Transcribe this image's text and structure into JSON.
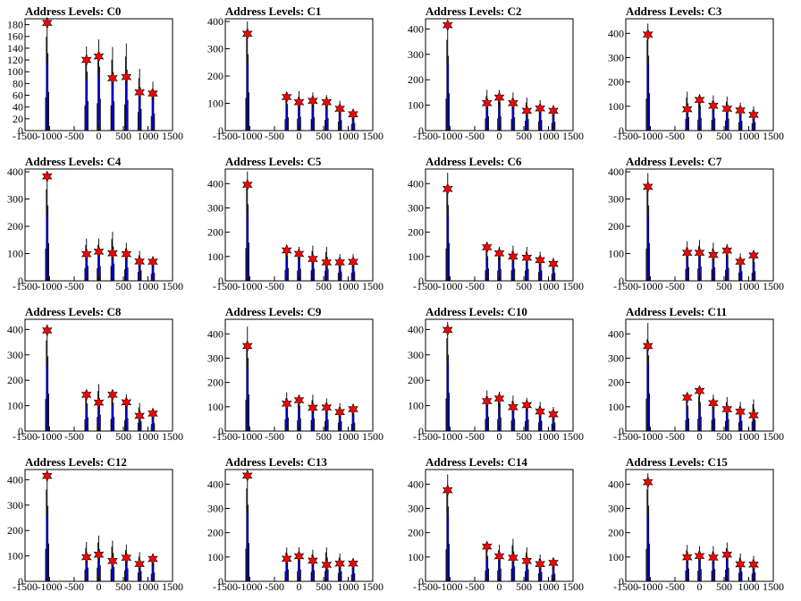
{
  "chart_data": [
    {
      "type": "histogram",
      "title": "Address Levels: C0",
      "xlim": [
        -1500,
        1500
      ],
      "ylim": [
        0,
        190
      ],
      "y_ticks": [
        0,
        20,
        40,
        60,
        80,
        100,
        120,
        140,
        160,
        180
      ],
      "x_ticks": [
        -1500,
        -1000,
        -500,
        0,
        500,
        1000,
        1500
      ],
      "peaks": [
        {
          "x": -1050,
          "y": 183
        },
        {
          "x": -250,
          "y": 120
        },
        {
          "x": 0,
          "y": 126
        },
        {
          "x": 280,
          "y": 89
        },
        {
          "x": 560,
          "y": 91
        },
        {
          "x": 830,
          "y": 65
        },
        {
          "x": 1100,
          "y": 63
        }
      ],
      "hist_max": [
        188,
        143,
        155,
        142,
        148,
        105,
        83
      ]
    },
    {
      "type": "histogram",
      "title": "Address Levels: C1",
      "xlim": [
        -1500,
        1500
      ],
      "ylim": [
        0,
        410
      ],
      "y_ticks": [
        0,
        100,
        200,
        300,
        400
      ],
      "x_ticks": [
        -1500,
        -1000,
        -500,
        0,
        500,
        1000,
        1500
      ],
      "peaks": [
        {
          "x": -1050,
          "y": 355
        },
        {
          "x": -250,
          "y": 123
        },
        {
          "x": 0,
          "y": 104
        },
        {
          "x": 280,
          "y": 109
        },
        {
          "x": 560,
          "y": 104
        },
        {
          "x": 830,
          "y": 80
        },
        {
          "x": 1100,
          "y": 60
        }
      ],
      "hist_max": [
        400,
        140,
        145,
        140,
        130,
        110,
        80
      ]
    },
    {
      "type": "histogram",
      "title": "Address Levels: C2",
      "xlim": [
        -1500,
        1500
      ],
      "ylim": [
        0,
        440
      ],
      "y_ticks": [
        0,
        100,
        200,
        300,
        400
      ],
      "x_ticks": [
        -1500,
        -1000,
        -500,
        0,
        500,
        1000,
        1500
      ],
      "peaks": [
        {
          "x": -1050,
          "y": 415
        },
        {
          "x": -250,
          "y": 108
        },
        {
          "x": 0,
          "y": 130
        },
        {
          "x": 280,
          "y": 108
        },
        {
          "x": 560,
          "y": 78
        },
        {
          "x": 830,
          "y": 87
        },
        {
          "x": 1100,
          "y": 78
        }
      ],
      "hist_max": [
        420,
        160,
        160,
        150,
        130,
        120,
        100
      ]
    },
    {
      "type": "histogram",
      "title": "Address Levels: C3",
      "xlim": [
        -1500,
        1500
      ],
      "ylim": [
        0,
        460
      ],
      "y_ticks": [
        0,
        100,
        200,
        300,
        400
      ],
      "x_ticks": [
        -1500,
        -1000,
        -500,
        0,
        500,
        1000,
        1500
      ],
      "peaks": [
        {
          "x": -1050,
          "y": 395
        },
        {
          "x": -250,
          "y": 88
        },
        {
          "x": 0,
          "y": 126
        },
        {
          "x": 280,
          "y": 102
        },
        {
          "x": 560,
          "y": 90
        },
        {
          "x": 830,
          "y": 83
        },
        {
          "x": 1100,
          "y": 65
        }
      ],
      "hist_max": [
        440,
        160,
        150,
        145,
        140,
        115,
        100
      ]
    },
    {
      "type": "histogram",
      "title": "Address Levels: C4",
      "xlim": [
        -1500,
        1500
      ],
      "ylim": [
        0,
        410
      ],
      "y_ticks": [
        0,
        100,
        200,
        300,
        400
      ],
      "x_ticks": [
        -1500,
        -1000,
        -500,
        0,
        500,
        1000,
        1500
      ],
      "peaks": [
        {
          "x": -1050,
          "y": 383
        },
        {
          "x": -250,
          "y": 98
        },
        {
          "x": 0,
          "y": 107
        },
        {
          "x": 280,
          "y": 101
        },
        {
          "x": 560,
          "y": 98
        },
        {
          "x": 830,
          "y": 71
        },
        {
          "x": 1100,
          "y": 70
        }
      ],
      "hist_max": [
        395,
        155,
        155,
        180,
        140,
        110,
        85
      ]
    },
    {
      "type": "histogram",
      "title": "Address Levels: C5",
      "xlim": [
        -1500,
        1500
      ],
      "ylim": [
        0,
        460
      ],
      "y_ticks": [
        0,
        100,
        200,
        300,
        400
      ],
      "x_ticks": [
        -1500,
        -1000,
        -500,
        0,
        500,
        1000,
        1500
      ],
      "peaks": [
        {
          "x": -1050,
          "y": 395
        },
        {
          "x": -250,
          "y": 125
        },
        {
          "x": 0,
          "y": 111
        },
        {
          "x": 280,
          "y": 90
        },
        {
          "x": 560,
          "y": 76
        },
        {
          "x": 830,
          "y": 76
        },
        {
          "x": 1100,
          "y": 78
        }
      ],
      "hist_max": [
        450,
        150,
        140,
        145,
        140,
        110,
        110
      ]
    },
    {
      "type": "histogram",
      "title": "Address Levels: C6",
      "xlim": [
        -1500,
        1500
      ],
      "ylim": [
        0,
        460
      ],
      "y_ticks": [
        0,
        100,
        200,
        300,
        400
      ],
      "x_ticks": [
        -1500,
        -1000,
        -500,
        0,
        500,
        1000,
        1500
      ],
      "peaks": [
        {
          "x": -1050,
          "y": 378
        },
        {
          "x": -250,
          "y": 138
        },
        {
          "x": 0,
          "y": 113
        },
        {
          "x": 280,
          "y": 100
        },
        {
          "x": 560,
          "y": 95
        },
        {
          "x": 830,
          "y": 85
        },
        {
          "x": 1100,
          "y": 70
        }
      ],
      "hist_max": [
        445,
        145,
        140,
        145,
        140,
        120,
        95
      ]
    },
    {
      "type": "histogram",
      "title": "Address Levels: C7",
      "xlim": [
        -1500,
        1500
      ],
      "ylim": [
        0,
        410
      ],
      "y_ticks": [
        0,
        100,
        200,
        300,
        400
      ],
      "x_ticks": [
        -1500,
        -1000,
        -500,
        0,
        500,
        1000,
        1500
      ],
      "peaks": [
        {
          "x": -1050,
          "y": 345
        },
        {
          "x": -250,
          "y": 103
        },
        {
          "x": 0,
          "y": 103
        },
        {
          "x": 280,
          "y": 95
        },
        {
          "x": 560,
          "y": 111
        },
        {
          "x": 830,
          "y": 70
        },
        {
          "x": 1100,
          "y": 93
        }
      ],
      "hist_max": [
        395,
        145,
        150,
        140,
        135,
        100,
        100
      ]
    },
    {
      "type": "histogram",
      "title": "Address Levels: C8",
      "xlim": [
        -1500,
        1500
      ],
      "ylim": [
        0,
        440
      ],
      "y_ticks": [
        0,
        100,
        200,
        300,
        400
      ],
      "x_ticks": [
        -1500,
        -1000,
        -500,
        0,
        500,
        1000,
        1500
      ],
      "peaks": [
        {
          "x": -1050,
          "y": 396
        },
        {
          "x": -250,
          "y": 143
        },
        {
          "x": 0,
          "y": 112
        },
        {
          "x": 280,
          "y": 143
        },
        {
          "x": 560,
          "y": 113
        },
        {
          "x": 830,
          "y": 60
        },
        {
          "x": 1100,
          "y": 69
        }
      ],
      "hist_max": [
        420,
        155,
        185,
        160,
        145,
        110,
        90
      ]
    },
    {
      "type": "histogram",
      "title": "Address Levels: C9",
      "xlim": [
        -1500,
        1500
      ],
      "ylim": [
        0,
        460
      ],
      "y_ticks": [
        0,
        100,
        200,
        300,
        400
      ],
      "x_ticks": [
        -1500,
        -1000,
        -500,
        0,
        500,
        1000,
        1500
      ],
      "peaks": [
        {
          "x": -1050,
          "y": 350
        },
        {
          "x": -250,
          "y": 113
        },
        {
          "x": 0,
          "y": 127
        },
        {
          "x": 280,
          "y": 96
        },
        {
          "x": 560,
          "y": 97
        },
        {
          "x": 830,
          "y": 78
        },
        {
          "x": 1100,
          "y": 90
        }
      ],
      "hist_max": [
        430,
        160,
        150,
        150,
        135,
        115,
        100
      ]
    },
    {
      "type": "histogram",
      "title": "Address Levels: C10",
      "xlim": [
        -1500,
        1500
      ],
      "ylim": [
        0,
        440
      ],
      "y_ticks": [
        0,
        100,
        200,
        300,
        400
      ],
      "x_ticks": [
        -1500,
        -1000,
        -500,
        0,
        500,
        1000,
        1500
      ],
      "peaks": [
        {
          "x": -1050,
          "y": 398
        },
        {
          "x": -250,
          "y": 118
        },
        {
          "x": 0,
          "y": 128
        },
        {
          "x": 280,
          "y": 94
        },
        {
          "x": 560,
          "y": 102
        },
        {
          "x": 830,
          "y": 77
        },
        {
          "x": 1100,
          "y": 66
        }
      ],
      "hist_max": [
        430,
        160,
        155,
        140,
        130,
        115,
        95
      ]
    },
    {
      "type": "histogram",
      "title": "Address Levels: C11",
      "xlim": [
        -1500,
        1500
      ],
      "ylim": [
        0,
        460
      ],
      "y_ticks": [
        0,
        100,
        200,
        300,
        400
      ],
      "x_ticks": [
        -1500,
        -1000,
        -500,
        0,
        500,
        1000,
        1500
      ],
      "peaks": [
        {
          "x": -1050,
          "y": 350
        },
        {
          "x": -250,
          "y": 138
        },
        {
          "x": 0,
          "y": 165
        },
        {
          "x": 280,
          "y": 115
        },
        {
          "x": 560,
          "y": 90
        },
        {
          "x": 830,
          "y": 80
        },
        {
          "x": 1100,
          "y": 65
        }
      ],
      "hist_max": [
        445,
        150,
        170,
        150,
        140,
        120,
        130
      ]
    },
    {
      "type": "histogram",
      "title": "Address Levels: C12",
      "xlim": [
        -1500,
        1500
      ],
      "ylim": [
        0,
        440
      ],
      "y_ticks": [
        0,
        100,
        200,
        300,
        400
      ],
      "x_ticks": [
        -1500,
        -1000,
        -500,
        0,
        500,
        1000,
        1500
      ],
      "peaks": [
        {
          "x": -1050,
          "y": 415
        },
        {
          "x": -250,
          "y": 95
        },
        {
          "x": 0,
          "y": 105
        },
        {
          "x": 280,
          "y": 80
        },
        {
          "x": 560,
          "y": 93
        },
        {
          "x": 830,
          "y": 68
        },
        {
          "x": 1100,
          "y": 88
        }
      ],
      "hist_max": [
        425,
        155,
        180,
        160,
        145,
        115,
        100
      ]
    },
    {
      "type": "histogram",
      "title": "Address Levels: C13",
      "xlim": [
        -1500,
        1500
      ],
      "ylim": [
        0,
        460
      ],
      "y_ticks": [
        0,
        100,
        200,
        300,
        400
      ],
      "x_ticks": [
        -1500,
        -1000,
        -500,
        0,
        500,
        1000,
        1500
      ],
      "peaks": [
        {
          "x": -1050,
          "y": 435
        },
        {
          "x": -250,
          "y": 93
        },
        {
          "x": 0,
          "y": 103
        },
        {
          "x": 280,
          "y": 85
        },
        {
          "x": 560,
          "y": 68
        },
        {
          "x": 830,
          "y": 73
        },
        {
          "x": 1100,
          "y": 73
        }
      ],
      "hist_max": [
        450,
        140,
        140,
        130,
        140,
        115,
        95
      ]
    },
    {
      "type": "histogram",
      "title": "Address Levels: C14",
      "xlim": [
        -1500,
        1500
      ],
      "ylim": [
        0,
        460
      ],
      "y_ticks": [
        0,
        100,
        200,
        300,
        400
      ],
      "x_ticks": [
        -1500,
        -1000,
        -500,
        0,
        500,
        1000,
        1500
      ],
      "peaks": [
        {
          "x": -1050,
          "y": 375
        },
        {
          "x": -250,
          "y": 143
        },
        {
          "x": 0,
          "y": 103
        },
        {
          "x": 280,
          "y": 97
        },
        {
          "x": 560,
          "y": 84
        },
        {
          "x": 830,
          "y": 71
        },
        {
          "x": 1100,
          "y": 76
        }
      ],
      "hist_max": [
        440,
        150,
        150,
        175,
        140,
        110,
        90
      ]
    },
    {
      "type": "histogram",
      "title": "Address Levels: C15",
      "xlim": [
        -1500,
        1500
      ],
      "ylim": [
        0,
        460
      ],
      "y_ticks": [
        0,
        100,
        200,
        300,
        400
      ],
      "x_ticks": [
        -1500,
        -1000,
        -500,
        0,
        500,
        1000,
        1500
      ],
      "peaks": [
        {
          "x": -1050,
          "y": 408
        },
        {
          "x": -250,
          "y": 99
        },
        {
          "x": 0,
          "y": 104
        },
        {
          "x": 280,
          "y": 98
        },
        {
          "x": 560,
          "y": 110
        },
        {
          "x": 830,
          "y": 70
        },
        {
          "x": 1100,
          "y": 69
        }
      ],
      "hist_max": [
        445,
        150,
        145,
        145,
        160,
        115,
        105
      ]
    }
  ],
  "colors": {
    "histogram": "#0000cc",
    "histogram_edge": "#000000",
    "marker": "#ff0000",
    "axis": "#000000"
  }
}
